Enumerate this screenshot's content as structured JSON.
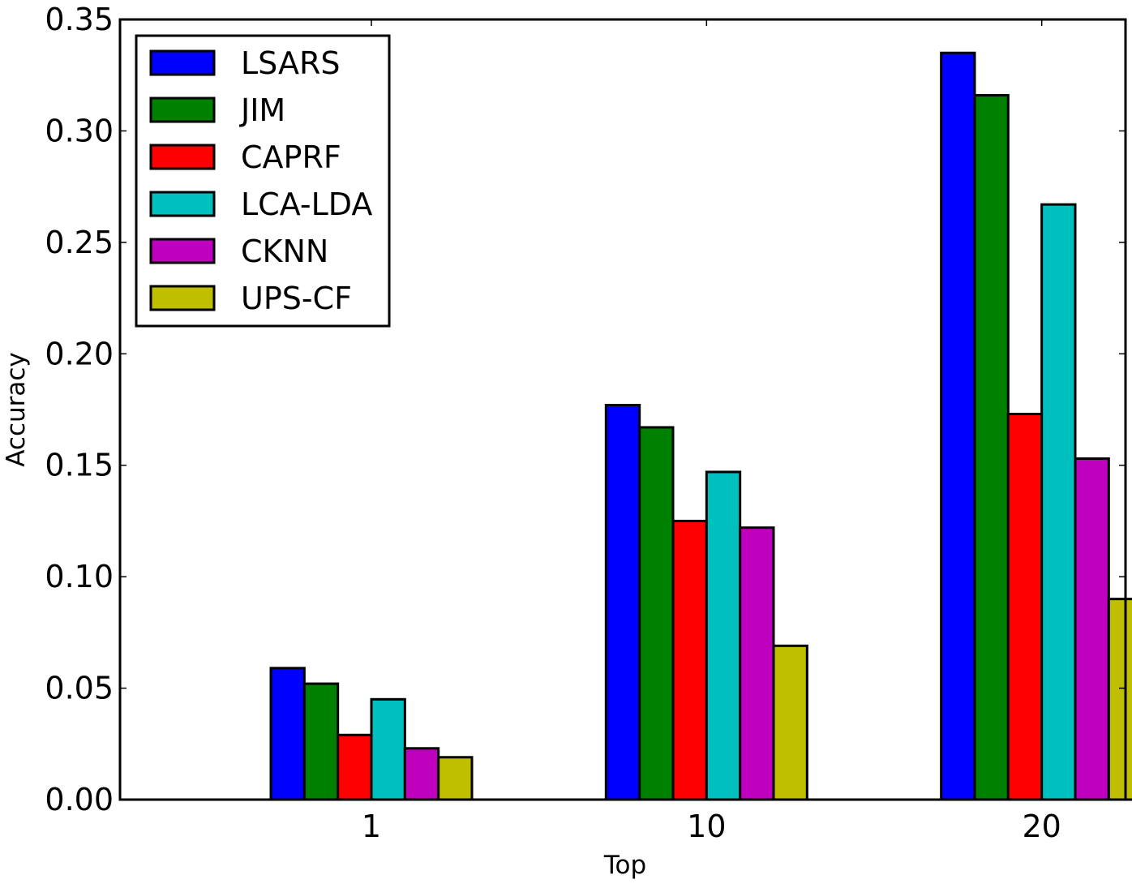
{
  "chart_data": {
    "type": "bar",
    "title": "",
    "xlabel": "Top",
    "ylabel": "Accuracy",
    "categories": [
      "1",
      "10",
      "20"
    ],
    "ylim": [
      0,
      0.35
    ],
    "yticks": [
      "0.00",
      "0.05",
      "0.10",
      "0.15",
      "0.20",
      "0.25",
      "0.30",
      "0.35"
    ],
    "grid": false,
    "legend_position": "top-left",
    "series": [
      {
        "name": "LSARS",
        "color": "#0000ff",
        "values": [
          0.059,
          0.177,
          0.335
        ]
      },
      {
        "name": "JIM",
        "color": "#008000",
        "values": [
          0.052,
          0.167,
          0.316
        ]
      },
      {
        "name": "CAPRF",
        "color": "#ff0000",
        "values": [
          0.029,
          0.125,
          0.173
        ]
      },
      {
        "name": "LCA-LDA",
        "color": "#00bfbf",
        "values": [
          0.045,
          0.147,
          0.267
        ]
      },
      {
        "name": "CKNN",
        "color": "#bf00bf",
        "values": [
          0.023,
          0.122,
          0.153
        ]
      },
      {
        "name": "UPS-CF",
        "color": "#bfbf00",
        "values": [
          0.019,
          0.069,
          0.09
        ]
      }
    ]
  }
}
